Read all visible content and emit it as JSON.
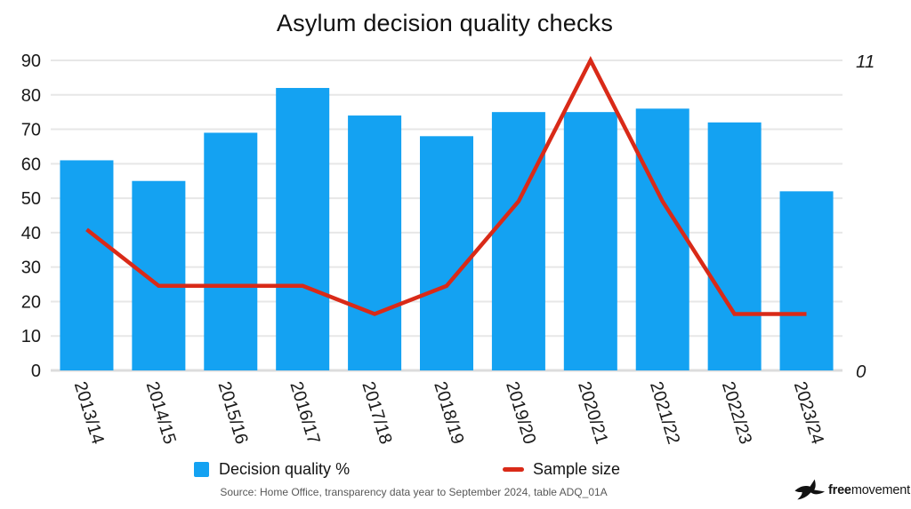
{
  "title": "Asylum decision quality checks",
  "chart_data": {
    "type": "bar",
    "title": "Asylum decision quality checks",
    "categories": [
      "2013/14",
      "2014/15",
      "2015/16",
      "2016/17",
      "2017/18",
      "2018/19",
      "2019/20",
      "2020/21",
      "2021/22",
      "2022/23",
      "2023/24"
    ],
    "series": [
      {
        "name": "Decision quality %",
        "type": "bar",
        "axis": "left",
        "color": "#14A2F2",
        "values": [
          61,
          55,
          69,
          82,
          74,
          68,
          75,
          75,
          76,
          72,
          52
        ]
      },
      {
        "name": "Sample size",
        "type": "line",
        "axis": "right",
        "color": "#D92A18",
        "values": [
          5,
          3,
          3,
          3,
          2,
          3,
          6,
          11,
          6,
          2,
          2
        ]
      }
    ],
    "left_axis": {
      "min": 0,
      "max": 90,
      "ticks": [
        0,
        10,
        20,
        30,
        40,
        50,
        60,
        70,
        80,
        90
      ]
    },
    "right_axis": {
      "min": 0,
      "max": 11,
      "ticks": [
        {
          "value": 11,
          "label": "11"
        },
        {
          "value": 0,
          "label": "0"
        }
      ]
    },
    "grid": true,
    "legend_position": "bottom"
  },
  "legend": {
    "items": [
      {
        "label": "Decision quality %",
        "color": "#14A2F2",
        "swatch": "square"
      },
      {
        "label": "Sample size",
        "color": "#D92A18",
        "swatch": "dash"
      }
    ]
  },
  "source": "Source: Home Office, transparency data year to September 2024, table ADQ_01A",
  "logo": {
    "bold": "free",
    "regular": "movement"
  },
  "colors": {
    "bar": "#14A2F2",
    "line": "#D92A18",
    "grid": "#E7E7E7",
    "baseline": "#DCDCDC",
    "axis_text": "#1A1A1A",
    "source_text": "#585858",
    "background": "#FFFFFF"
  }
}
